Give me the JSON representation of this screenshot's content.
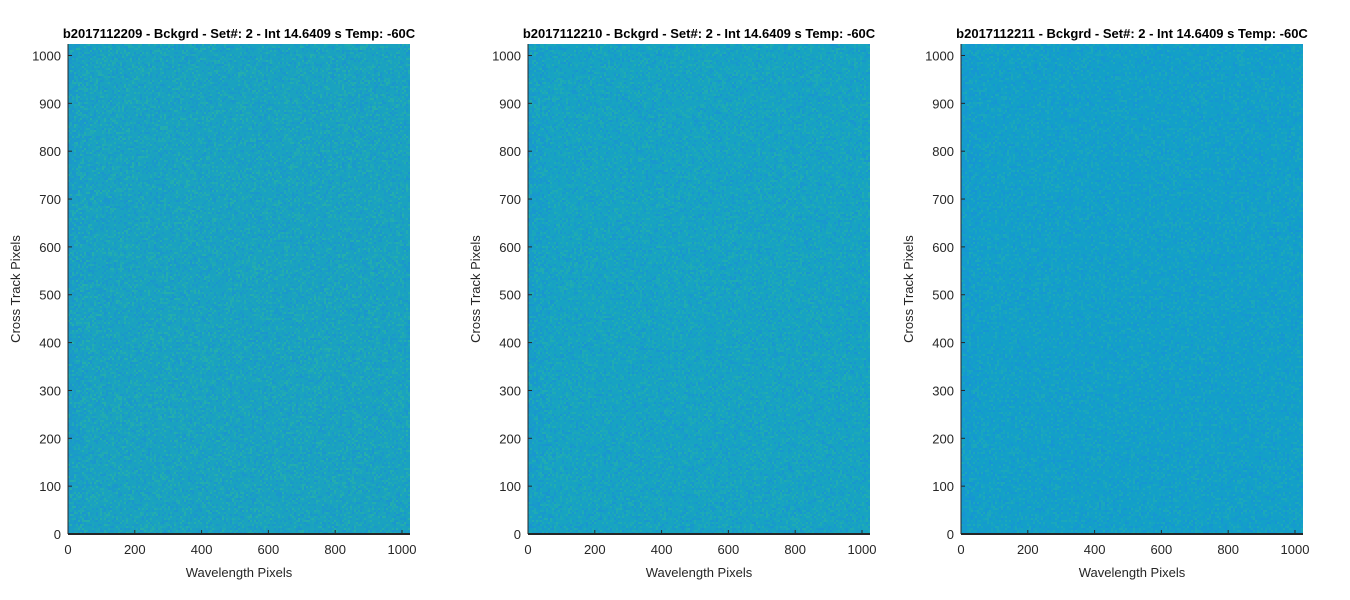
{
  "chart_data": [
    {
      "type": "heatmap",
      "title": "b2017112209 - Bckgrd - Set#: 2 - Int 14.6409 s Temp: -60C",
      "xlabel": "Wavelength Pixels",
      "ylabel": "Cross Track Pixels",
      "xlim": [
        0,
        1024
      ],
      "ylim": [
        0,
        1024
      ],
      "xticks": [
        0,
        200,
        400,
        600,
        800,
        1000
      ],
      "yticks": [
        0,
        100,
        200,
        300,
        400,
        500,
        600,
        700,
        800,
        900,
        1000
      ],
      "colors": {
        "base": "#1aa2c0",
        "low": "#1b8fd6",
        "high": "#2ab5a0"
      },
      "grid": false
    },
    {
      "type": "heatmap",
      "title": "b2017112210 - Bckgrd - Set#: 2 - Int 14.6409 s Temp: -60C",
      "xlabel": "Wavelength Pixels",
      "ylabel": "Cross Track Pixels",
      "xlim": [
        0,
        1024
      ],
      "ylim": [
        0,
        1024
      ],
      "xticks": [
        0,
        200,
        400,
        600,
        800,
        1000
      ],
      "yticks": [
        0,
        100,
        200,
        300,
        400,
        500,
        600,
        700,
        800,
        900,
        1000
      ],
      "colors": {
        "base": "#17a3c2",
        "low": "#1a8fd8",
        "high": "#26b2a6"
      },
      "grid": false
    },
    {
      "type": "heatmap",
      "title": "b2017112211 - Bckgrd - Set#: 2 - Int 14.6409 s Temp: -60C",
      "xlabel": "Wavelength Pixels",
      "ylabel": "Cross Track Pixels",
      "xlim": [
        0,
        1024
      ],
      "ylim": [
        0,
        1024
      ],
      "xticks": [
        0,
        200,
        400,
        600,
        800,
        1000
      ],
      "yticks": [
        0,
        100,
        200,
        300,
        400,
        500,
        600,
        700,
        800,
        900,
        1000
      ],
      "colors": {
        "base": "#13a0c8",
        "low": "#1890da",
        "high": "#22aeb0"
      },
      "grid": false
    }
  ]
}
